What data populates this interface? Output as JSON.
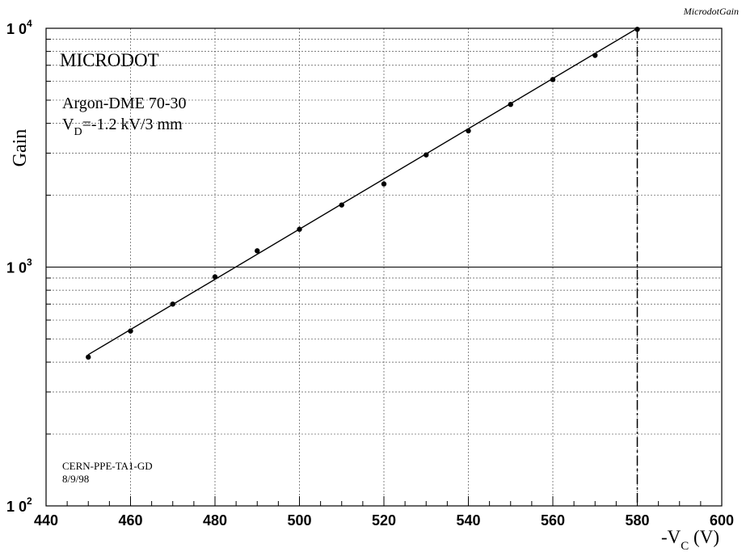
{
  "header": {
    "tag": "MicrodotGain"
  },
  "annotations": {
    "title": "MICRODOT",
    "gas": "Argon-DME 70-30",
    "drift_prefix": "V",
    "drift_sub": "D",
    "drift_value": "=-1.2 kV/3 mm",
    "credit_line1": "CERN-PPE-TA1-GD",
    "credit_line2": "8/9/98"
  },
  "chart_data": {
    "type": "scatter",
    "title": "",
    "ylabel": "Gain",
    "xlabel": {
      "prefix": "-V",
      "sub": "C",
      "suffix": " (V)"
    },
    "xlim": [
      440,
      600
    ],
    "ylim": [
      100,
      10000
    ],
    "y_scale": "log",
    "grid": true,
    "x_ticks": [
      "440",
      "460",
      "480",
      "500",
      "520",
      "540",
      "560",
      "580",
      "600"
    ],
    "y_ticks": [
      {
        "base": "1 0",
        "exp": "2"
      },
      {
        "base": "1 0",
        "exp": "3"
      },
      {
        "base": "1 0",
        "exp": "4"
      }
    ],
    "series": [
      {
        "points": [
          [
            450,
            420
          ],
          [
            460,
            540
          ],
          [
            470,
            700
          ],
          [
            480,
            910
          ],
          [
            490,
            1170
          ],
          [
            500,
            1440
          ],
          [
            510,
            1820
          ],
          [
            520,
            2230
          ],
          [
            530,
            2950
          ],
          [
            540,
            3720
          ],
          [
            550,
            4800
          ],
          [
            560,
            6100
          ],
          [
            570,
            7700
          ],
          [
            580,
            9900
          ]
        ]
      }
    ],
    "fit_line": {
      "x": [
        450,
        580
      ],
      "y": [
        430,
        10000
      ]
    },
    "marker_line_x": 580
  }
}
